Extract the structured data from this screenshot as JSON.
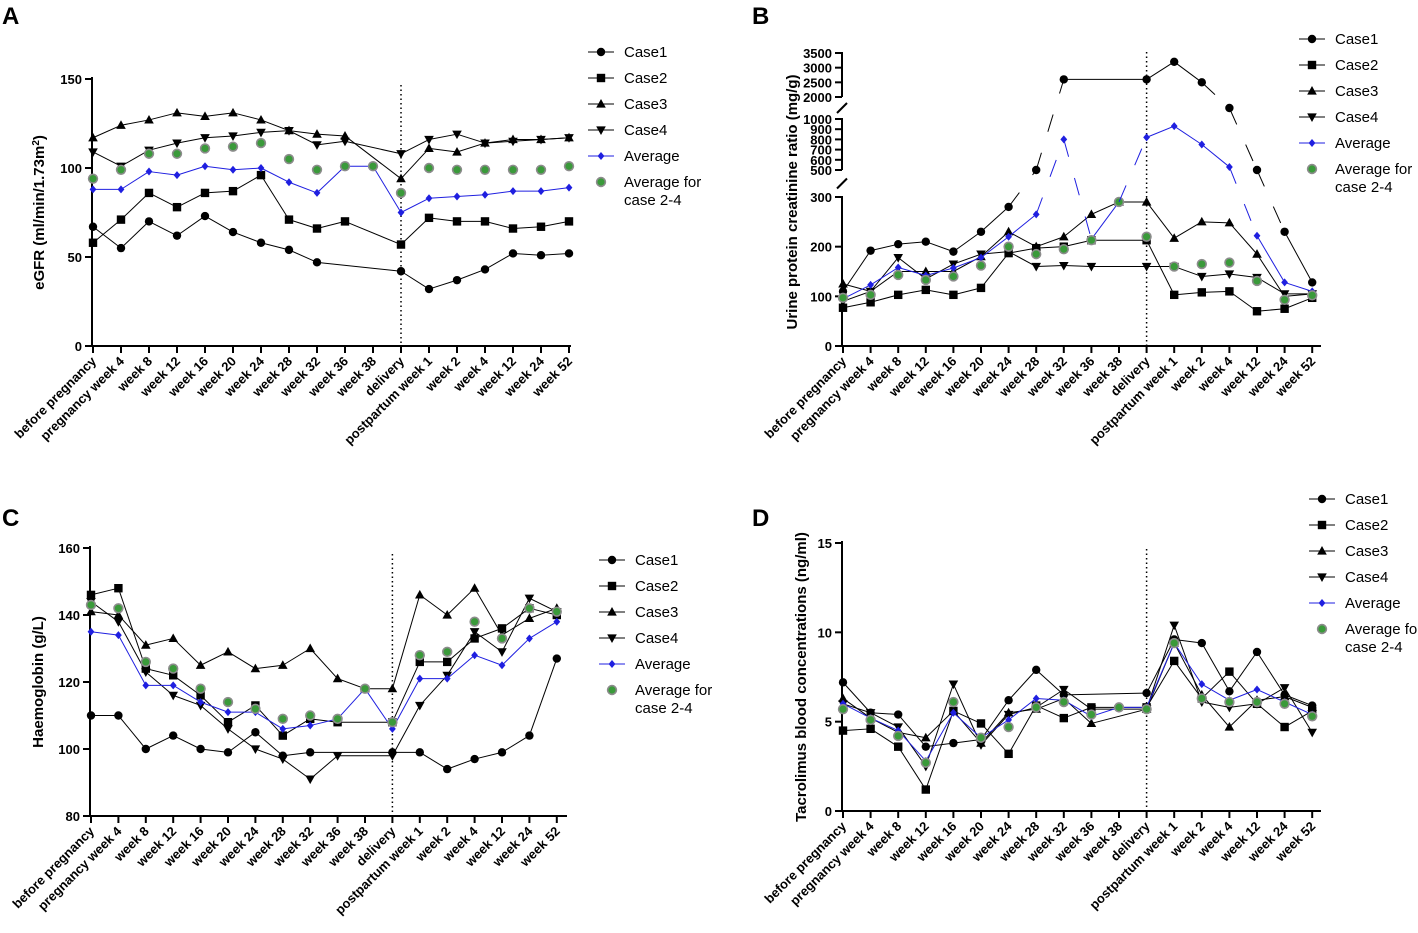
{
  "colors": {
    "black": "#000000",
    "average": "#1f1fe0",
    "avg24_fill": "#3a9a3a",
    "avg24_stroke": "#8c8c8c"
  },
  "x_categories": [
    "before pregnancy",
    "pregnancy week 4",
    "week 8",
    "week 12",
    "week 16",
    "week 20",
    "week 24",
    "week 28",
    "week 32",
    "week 36",
    "week 38",
    "delivery",
    "postpartum week 1",
    "week 2",
    "week 4",
    "week 12",
    "week 24",
    "week 52"
  ],
  "legend": {
    "entries": [
      {
        "key": "case1",
        "label": "Case1",
        "marker": "circle"
      },
      {
        "key": "case2",
        "label": "Case2",
        "marker": "square"
      },
      {
        "key": "case3",
        "label": "Case3",
        "marker": "triangle-up"
      },
      {
        "key": "case4",
        "label": "Case4",
        "marker": "triangle-down"
      },
      {
        "key": "average",
        "label": "Average",
        "marker": "diamond"
      },
      {
        "key": "avg24",
        "label": "Average for",
        "label2": "case 2-4",
        "marker": "green-circle"
      }
    ]
  },
  "chart_data": [
    {
      "id": "A",
      "type": "line",
      "letter": "A",
      "ylabel": "eGFR (ml/min/1.73m",
      "ylabel_sup": "2",
      "ylabel_end": ")",
      "ylim": [
        0,
        150
      ],
      "yticks": [
        "0",
        "50",
        "100",
        "150"
      ],
      "series": [
        {
          "key": "case1",
          "name": "Case1",
          "values": [
            67,
            55,
            70,
            62,
            73,
            64,
            58,
            54,
            47,
            null,
            null,
            42,
            32,
            37,
            43,
            52,
            51,
            52
          ]
        },
        {
          "key": "case2",
          "name": "Case2",
          "values": [
            58,
            71,
            86,
            78,
            86,
            87,
            96,
            71,
            66,
            70,
            null,
            57,
            72,
            70,
            70,
            66,
            67,
            70
          ]
        },
        {
          "key": "case3",
          "name": "Case3",
          "values": [
            117,
            124,
            127,
            131,
            129,
            131,
            127,
            121,
            119,
            118,
            null,
            94,
            111,
            109,
            114,
            116,
            116,
            117
          ]
        },
        {
          "key": "case4",
          "name": "Case4",
          "values": [
            109,
            101,
            110,
            114,
            117,
            118,
            120,
            121,
            113,
            115,
            null,
            108,
            116,
            119,
            114,
            115,
            116,
            117
          ]
        },
        {
          "key": "average",
          "name": "Average",
          "values": [
            88,
            88,
            98,
            96,
            101,
            99,
            100,
            92,
            86,
            101,
            101,
            75,
            83,
            84,
            85,
            87,
            87,
            89
          ]
        },
        {
          "key": "avg24",
          "name": "Average for case 2-4",
          "values": [
            94,
            99,
            108,
            108,
            111,
            112,
            114,
            105,
            99,
            101,
            101,
            86,
            100,
            99,
            99,
            99,
            99,
            101
          ]
        }
      ]
    },
    {
      "id": "B",
      "type": "line",
      "letter": "B",
      "ylabel": "Urine protein creatinine ratio (mg/g)",
      "broken_axis": true,
      "yticks": [
        "0",
        "100",
        "200",
        "300",
        "500",
        "600",
        "700",
        "800",
        "900",
        "1000",
        "2000",
        "2500",
        "3000",
        "3500"
      ],
      "series": [
        {
          "key": "case1",
          "name": "Case1",
          "values": [
            110,
            192,
            205,
            210,
            190,
            230,
            280,
            500,
            2600,
            null,
            null,
            2600,
            3200,
            2500,
            1500,
            500,
            230,
            128
          ]
        },
        {
          "key": "case2",
          "name": "Case2",
          "values": [
            77,
            88,
            103,
            113,
            103,
            117,
            187,
            197,
            200,
            213,
            null,
            213,
            103,
            108,
            110,
            70,
            75,
            97
          ]
        },
        {
          "key": "case3",
          "name": "Case3",
          "values": [
            125,
            110,
            150,
            150,
            150,
            180,
            230,
            200,
            220,
            265,
            290,
            290,
            217,
            250,
            248,
            185,
            100,
            105
          ]
        },
        {
          "key": "case4",
          "name": "Case4",
          "values": [
            90,
            110,
            178,
            135,
            165,
            185,
            190,
            160,
            162,
            160,
            null,
            160,
            160,
            140,
            145,
            138,
            105,
            105
          ]
        },
        {
          "key": "average",
          "name": "Average",
          "values": [
            95,
            123,
            158,
            142,
            157,
            178,
            220,
            265,
            800,
            215,
            290,
            820,
            930,
            750,
            530,
            222,
            128,
            110
          ]
        },
        {
          "key": "avg24",
          "name": "Average for case 2-4",
          "values": [
            97,
            103,
            143,
            133,
            140,
            162,
            200,
            185,
            195,
            213,
            290,
            220,
            160,
            165,
            168,
            131,
            93,
            102
          ]
        }
      ]
    },
    {
      "id": "C",
      "type": "line",
      "letter": "C",
      "ylabel": "Haemoglobin (g/L)",
      "ylim": [
        80,
        160
      ],
      "yticks": [
        "80",
        "100",
        "120",
        "140",
        "160"
      ],
      "series": [
        {
          "key": "case1",
          "name": "Case1",
          "values": [
            110,
            110,
            100,
            104,
            100,
            99,
            105,
            98,
            99,
            null,
            null,
            99,
            99,
            94,
            97,
            99,
            104,
            127
          ]
        },
        {
          "key": "case2",
          "name": "Case2",
          "values": [
            146,
            148,
            124,
            122,
            116,
            108,
            113,
            104,
            109,
            108,
            null,
            108,
            126,
            126,
            133,
            136,
            142,
            140
          ]
        },
        {
          "key": "case3",
          "name": "Case3",
          "values": [
            141,
            140,
            131,
            133,
            125,
            129,
            124,
            125,
            130,
            121,
            118,
            118,
            146,
            140,
            148,
            134,
            139,
            142
          ]
        },
        {
          "key": "case4",
          "name": "Case4",
          "values": [
            144,
            138,
            123,
            116,
            113,
            106,
            100,
            97,
            91,
            98,
            null,
            98,
            113,
            122,
            135,
            129,
            145,
            141
          ]
        },
        {
          "key": "average",
          "name": "Average",
          "values": [
            135,
            134,
            119,
            119,
            114,
            111,
            111,
            106,
            107,
            109,
            118,
            106,
            121,
            121,
            128,
            125,
            133,
            138
          ]
        },
        {
          "key": "avg24",
          "name": "Average for case 2-4",
          "values": [
            143,
            142,
            126,
            124,
            118,
            114,
            112,
            109,
            110,
            109,
            118,
            108,
            128,
            129,
            138,
            133,
            142,
            141
          ]
        }
      ]
    },
    {
      "id": "D",
      "type": "line",
      "letter": "D",
      "ylabel": "Tacrolimus blood concentrations (ng/ml)",
      "ylim": [
        0,
        15
      ],
      "yticks": [
        "0",
        "5",
        "10",
        "15"
      ],
      "series": [
        {
          "key": "case1",
          "name": "Case1",
          "values": [
            7.2,
            5.5,
            5.4,
            3.6,
            3.8,
            4.0,
            6.2,
            7.9,
            6.5,
            null,
            null,
            6.6,
            9.6,
            9.4,
            6.7,
            8.9,
            6.5,
            5.9
          ]
        },
        {
          "key": "case2",
          "name": "Case2",
          "values": [
            4.5,
            4.6,
            3.6,
            1.2,
            5.6,
            4.9,
            3.2,
            5.9,
            5.2,
            5.8,
            null,
            5.8,
            8.4,
            6.3,
            7.8,
            6.0,
            4.7,
            5.6
          ]
        },
        {
          "key": "case3",
          "name": "Case3",
          "values": [
            6.3,
            5.2,
            4.4,
            4.1,
            5.6,
            3.8,
            5.5,
            5.7,
            6.3,
            4.9,
            null,
            5.7,
            9.4,
            6.5,
            4.7,
            6.2,
            6.4,
            5.8
          ]
        },
        {
          "key": "case4",
          "name": "Case4",
          "values": [
            6.0,
            5.5,
            4.7,
            2.5,
            7.1,
            3.7,
            5.4,
            5.8,
            6.8,
            5.7,
            null,
            5.7,
            10.4,
            6.1,
            5.8,
            6.0,
            6.9,
            4.4
          ]
        },
        {
          "key": "average",
          "name": "Average",
          "values": [
            6.0,
            5.2,
            4.5,
            2.8,
            5.5,
            4.1,
            5.1,
            6.3,
            6.2,
            5.3,
            5.8,
            5.8,
            9.4,
            7.1,
            6.2,
            6.8,
            6.1,
            5.4
          ]
        },
        {
          "key": "avg24",
          "name": "Average for case 2-4",
          "values": [
            5.7,
            5.1,
            4.2,
            2.7,
            6.1,
            4.1,
            4.7,
            5.8,
            6.1,
            5.4,
            5.8,
            5.7,
            9.4,
            6.3,
            6.1,
            6.1,
            6.0,
            5.3
          ]
        }
      ]
    }
  ]
}
